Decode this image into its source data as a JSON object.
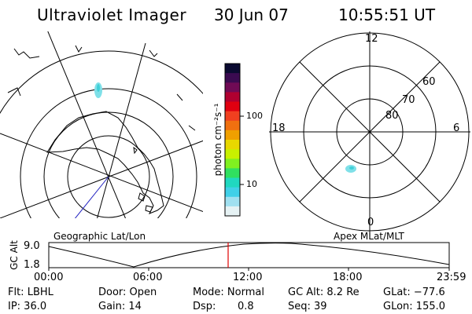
{
  "header": {
    "title": "Ultraviolet Imager",
    "date": "30 Jun 07",
    "time": "10:55:51 UT"
  },
  "left_map": {
    "label": "Geographic Lat/Lon"
  },
  "right_map": {
    "label": "Apex MLat/MLT",
    "mlt_top": "12",
    "mlt_left": "18",
    "mlt_right": "6",
    "mlt_bottom": "0",
    "lat_60": "60",
    "lat_70": "70",
    "lat_80": "80"
  },
  "colorbar": {
    "label": "photon cm⁻²s⁻¹",
    "tick_100": "100",
    "tick_10": "10",
    "colors": [
      "#0a0a30",
      "#3a0a50",
      "#700a55",
      "#b00030",
      "#e00010",
      "#f04020",
      "#f07010",
      "#f0a000",
      "#e8d800",
      "#c8f000",
      "#80f020",
      "#30e060",
      "#20d8c0",
      "#40d0e8",
      "#a0e0f0",
      "#e6f2f4"
    ]
  },
  "timeline": {
    "axis_label": "GC Alt",
    "y_top": "9.0",
    "y_bottom": "1.8",
    "ticks": [
      "00:00",
      "06:00",
      "12:00",
      "18:00",
      "23:59"
    ],
    "current_color": "#e00000"
  },
  "status": {
    "flt": "Flt: LBHL",
    "ip": "IP: 36.0",
    "door": "Door: Open",
    "gain": "Gain: 14",
    "mode": "Mode: Normal",
    "dsp_label": "Dsp:",
    "dsp_value": "0.8",
    "gc_alt": "GC Alt: 8.2 Re",
    "seq": "Seq: 39",
    "glat": "GLat: −77.6",
    "glon": "GLon: 155.0"
  }
}
